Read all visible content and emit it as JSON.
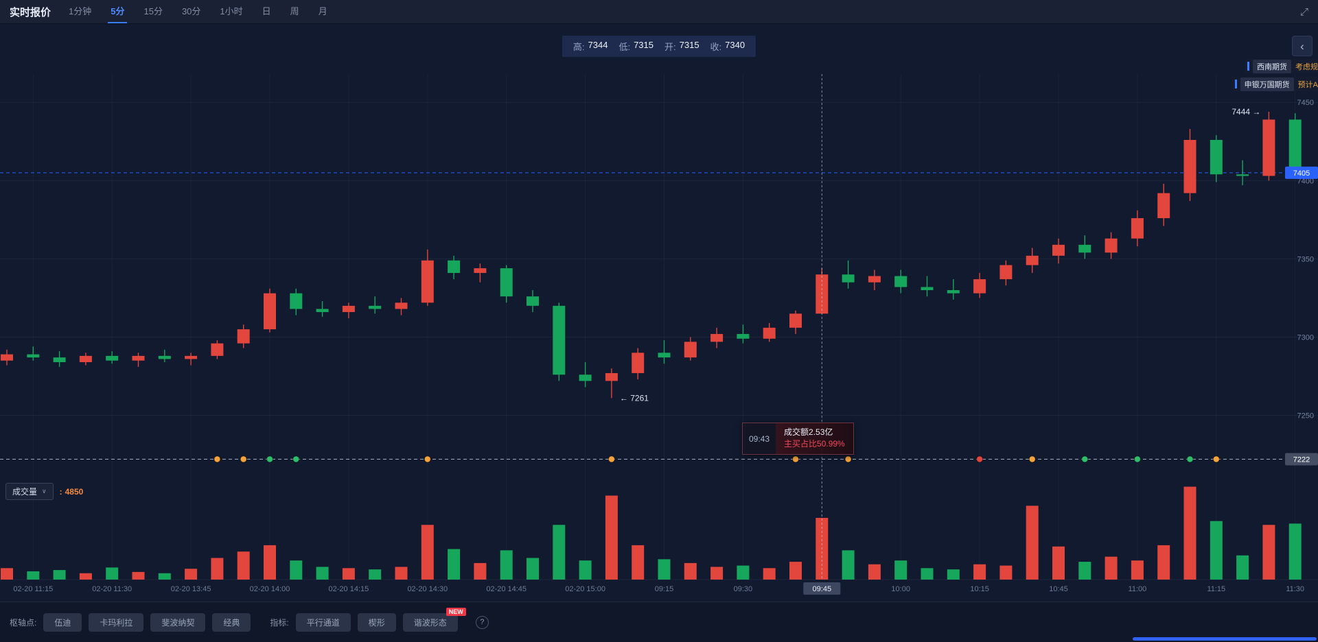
{
  "topbar": {
    "title": "实时报价",
    "timeframes": [
      "1分钟",
      "5分",
      "15分",
      "30分",
      "1小时",
      "日",
      "周",
      "月"
    ]
  },
  "icons": {
    "fullscreen": "⤢",
    "collapse": "‹",
    "dropdown": "∨",
    "help": "?"
  },
  "ohlc": {
    "items": [
      {
        "label": "高:",
        "value": "7344"
      },
      {
        "label": "低:",
        "value": "7315"
      },
      {
        "label": "开:",
        "value": "7315"
      },
      {
        "label": "收:",
        "value": "7340"
      }
    ]
  },
  "news": [
    {
      "source": "西南期货",
      "text": "考虑规"
    },
    {
      "source": "申银万国期货",
      "text": "预计A"
    }
  ],
  "tooltip": {
    "time": "09:43",
    "line1": "成交额2.53亿",
    "line2": "主买占比50.99%"
  },
  "volume_header": {
    "label": "成交量",
    "value_prefix": ":",
    "value": "4850"
  },
  "bottom": {
    "pivot_label": "枢轴点:",
    "pivot_buttons": [
      "伍迪",
      "卡玛利拉",
      "斐波纳契",
      "经典"
    ],
    "indicator_label": "指标:",
    "indicator_buttons": [
      "平行通道",
      "楔形",
      "谐波形态"
    ],
    "new_badge": "NEW"
  },
  "chart_data": {
    "type": "candlestick",
    "interval": "5分",
    "candle_fields": [
      "time",
      "open",
      "high",
      "low",
      "close"
    ],
    "candles": [
      [
        "11:10",
        7285,
        7292,
        7282,
        7289
      ],
      [
        "11:15",
        7289,
        7294,
        7285,
        7287
      ],
      [
        "11:20",
        7287,
        7291,
        7281,
        7284
      ],
      [
        "11:25",
        7284,
        7290,
        7282,
        7288
      ],
      [
        "11:30",
        7288,
        7291,
        7283,
        7285
      ],
      [
        "13:35",
        7285,
        7290,
        7281,
        7288
      ],
      [
        "13:40",
        7288,
        7292,
        7284,
        7286
      ],
      [
        "13:45",
        7286,
        7290,
        7282,
        7288
      ],
      [
        "13:50",
        7288,
        7298,
        7286,
        7296
      ],
      [
        "13:55",
        7296,
        7308,
        7293,
        7305
      ],
      [
        "14:00",
        7305,
        7331,
        7303,
        7328
      ],
      [
        "14:05",
        7328,
        7331,
        7314,
        7318
      ],
      [
        "14:10",
        7318,
        7323,
        7313,
        7316
      ],
      [
        "14:15",
        7316,
        7322,
        7312,
        7320
      ],
      [
        "14:20",
        7320,
        7326,
        7315,
        7318
      ],
      [
        "14:25",
        7318,
        7325,
        7314,
        7322
      ],
      [
        "14:30",
        7322,
        7356,
        7320,
        7349
      ],
      [
        "14:35",
        7349,
        7352,
        7337,
        7341
      ],
      [
        "14:40",
        7341,
        7347,
        7335,
        7344
      ],
      [
        "14:45",
        7344,
        7346,
        7322,
        7326
      ],
      [
        "14:50",
        7326,
        7330,
        7316,
        7320
      ],
      [
        "14:55",
        7320,
        7322,
        7272,
        7276
      ],
      [
        "15:00",
        7276,
        7284,
        7268,
        7272
      ],
      [
        "09:05",
        7272,
        7280,
        7261,
        7277
      ],
      [
        "09:10",
        7277,
        7293,
        7273,
        7290
      ],
      [
        "09:15",
        7290,
        7298,
        7283,
        7287
      ],
      [
        "09:20",
        7287,
        7300,
        7285,
        7297
      ],
      [
        "09:25",
        7297,
        7306,
        7293,
        7302
      ],
      [
        "09:30",
        7302,
        7308,
        7296,
        7299
      ],
      [
        "09:35",
        7299,
        7309,
        7297,
        7306
      ],
      [
        "09:40",
        7306,
        7317,
        7302,
        7315
      ],
      [
        "09:45",
        7315,
        7344,
        7315,
        7340
      ],
      [
        "09:50",
        7340,
        7349,
        7331,
        7335
      ],
      [
        "09:55",
        7335,
        7343,
        7330,
        7339
      ],
      [
        "10:00",
        7339,
        7343,
        7328,
        7332
      ],
      [
        "10:05",
        7332,
        7339,
        7326,
        7330
      ],
      [
        "10:10",
        7330,
        7337,
        7324,
        7328
      ],
      [
        "10:15",
        7328,
        7341,
        7325,
        7337
      ],
      [
        "10:35",
        7337,
        7349,
        7333,
        7346
      ],
      [
        "10:40",
        7346,
        7357,
        7341,
        7352
      ],
      [
        "10:45",
        7352,
        7363,
        7347,
        7359
      ],
      [
        "10:50",
        7359,
        7365,
        7350,
        7354
      ],
      [
        "10:55",
        7354,
        7367,
        7350,
        7363
      ],
      [
        "11:00",
        7363,
        7381,
        7358,
        7376
      ],
      [
        "11:05",
        7376,
        7398,
        7371,
        7392
      ],
      [
        "11:10",
        7392,
        7433,
        7387,
        7426
      ],
      [
        "11:15",
        7426,
        7429,
        7399,
        7404
      ],
      [
        "11:20",
        7404,
        7413,
        7397,
        7403
      ],
      [
        "11:25",
        7403,
        7444,
        7400,
        7439
      ],
      [
        "11:30",
        7439,
        7443,
        7402,
        7405
      ]
    ],
    "volumes": [
      900,
      650,
      750,
      500,
      950,
      600,
      500,
      850,
      1700,
      2200,
      2700,
      1500,
      1000,
      900,
      800,
      1000,
      4300,
      2400,
      1300,
      2300,
      1700,
      4300,
      1500,
      6600,
      2700,
      1600,
      1300,
      1000,
      1100,
      900,
      1400,
      4850,
      2300,
      1200,
      1500,
      900,
      800,
      1200,
      1100,
      5800,
      2600,
      1400,
      1800,
      1500,
      2700,
      7300,
      4600,
      1900,
      4300,
      4400
    ],
    "volume_scale_max": 7600,
    "x_labels": [
      [
        1,
        "02-20 11:15"
      ],
      [
        4,
        "02-20 11:30"
      ],
      [
        7,
        "02-20 13:45"
      ],
      [
        10,
        "02-20 14:00"
      ],
      [
        13,
        "02-20 14:15"
      ],
      [
        16,
        "02-20 14:30"
      ],
      [
        19,
        "02-20 14:45"
      ],
      [
        22,
        "02-20 15:00"
      ],
      [
        25,
        "09:15"
      ],
      [
        28,
        "09:30"
      ],
      [
        31,
        "09:45"
      ],
      [
        34,
        "10:00"
      ],
      [
        37,
        "10:15"
      ],
      [
        40,
        "10:45"
      ],
      [
        43,
        "11:00"
      ],
      [
        46,
        "11:15"
      ],
      [
        49,
        "11:30"
      ]
    ],
    "y_axis": {
      "ticks": [
        7450,
        7400,
        7350,
        7300,
        7250
      ],
      "display_range": [
        7213,
        7465
      ]
    },
    "current_price": 7405,
    "support_level": 7222,
    "crosshair": {
      "index": 31,
      "time_label": "09:45"
    },
    "annotations": [
      {
        "index": 48,
        "price": 7444,
        "text": "7444 →",
        "side": "left"
      },
      {
        "index": 23,
        "price": 7261,
        "text": "← 7261",
        "side": "right"
      }
    ],
    "markers": [
      [
        8,
        "orange"
      ],
      [
        9,
        "orange"
      ],
      [
        10,
        "green"
      ],
      [
        11,
        "green"
      ],
      [
        16,
        "orange"
      ],
      [
        23,
        "orange"
      ],
      [
        30,
        "orange"
      ],
      [
        32,
        "orange"
      ],
      [
        37,
        "red"
      ],
      [
        39,
        "orange"
      ],
      [
        41,
        "green"
      ],
      [
        43,
        "green"
      ],
      [
        45,
        "green"
      ],
      [
        46,
        "orange"
      ]
    ],
    "colors": {
      "up": "#e2463d",
      "down": "#17a75c",
      "accent_blue": "#2962ff",
      "support_badge": "#454e63",
      "marker_orange": "#f5a33b",
      "marker_green": "#2fbf6b",
      "marker_red": "#e2463d"
    }
  }
}
